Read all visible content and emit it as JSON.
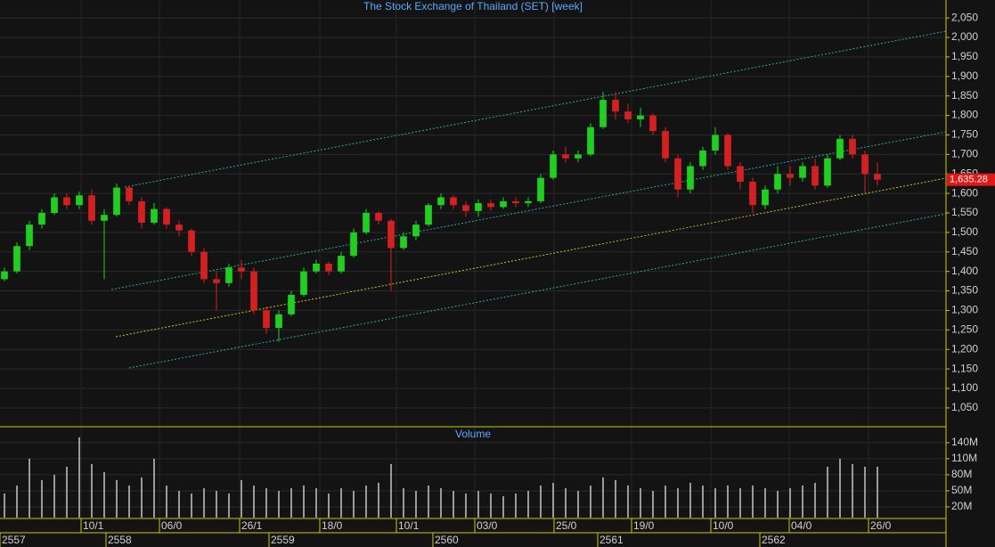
{
  "chart_data": {
    "type": "candlestick",
    "title": "The Stock Exchange of Thailand (SET) [week]",
    "volume_title": "Volume",
    "up_color": "#1fd01f",
    "down_color": "#d42020",
    "grid": true,
    "ylim": [
      1004,
      2096
    ],
    "yticks": [
      {
        "value": 1050,
        "label": "1,050"
      },
      {
        "value": 1100,
        "label": "1,100"
      },
      {
        "value": 1150,
        "label": "1,150"
      },
      {
        "value": 1200,
        "label": "1,200"
      },
      {
        "value": 1250,
        "label": "1,250"
      },
      {
        "value": 1300,
        "label": "1,300"
      },
      {
        "value": 1350,
        "label": "1,350"
      },
      {
        "value": 1400,
        "label": "1,400"
      },
      {
        "value": 1450,
        "label": "1,450"
      },
      {
        "value": 1500,
        "label": "1,500"
      },
      {
        "value": 1550,
        "label": "1,550"
      },
      {
        "value": 1600,
        "label": "1,600"
      },
      {
        "value": 1650,
        "label": "1,650"
      },
      {
        "value": 1700,
        "label": "1,700"
      },
      {
        "value": 1750,
        "label": "1,750"
      },
      {
        "value": 1800,
        "label": "1,800"
      },
      {
        "value": 1850,
        "label": "1,850"
      },
      {
        "value": 1900,
        "label": "1,900"
      },
      {
        "value": 1950,
        "label": "1,950"
      },
      {
        "value": 2000,
        "label": "2,000"
      },
      {
        "value": 2050,
        "label": "2,050"
      }
    ],
    "last_price": {
      "value": 1635.28,
      "label": "1,635.28"
    },
    "candles": [
      [
        1380,
        1410,
        1375,
        1400
      ],
      [
        1400,
        1475,
        1395,
        1465
      ],
      [
        1465,
        1530,
        1455,
        1520
      ],
      [
        1520,
        1560,
        1510,
        1550
      ],
      [
        1550,
        1600,
        1545,
        1590
      ],
      [
        1590,
        1600,
        1560,
        1570
      ],
      [
        1570,
        1605,
        1560,
        1595
      ],
      [
        1595,
        1610,
        1520,
        1530
      ],
      [
        1530,
        1560,
        1380,
        1545
      ],
      [
        1545,
        1625,
        1540,
        1615
      ],
      [
        1615,
        1620,
        1570,
        1580
      ],
      [
        1580,
        1590,
        1510,
        1525
      ],
      [
        1525,
        1575,
        1520,
        1560
      ],
      [
        1560,
        1565,
        1510,
        1520
      ],
      [
        1520,
        1530,
        1490,
        1505
      ],
      [
        1505,
        1510,
        1440,
        1450
      ],
      [
        1450,
        1460,
        1370,
        1380
      ],
      [
        1380,
        1400,
        1300,
        1370
      ],
      [
        1370,
        1420,
        1360,
        1410
      ],
      [
        1410,
        1430,
        1380,
        1400
      ],
      [
        1400,
        1410,
        1290,
        1300
      ],
      [
        1300,
        1310,
        1240,
        1255
      ],
      [
        1255,
        1300,
        1220,
        1290
      ],
      [
        1290,
        1350,
        1285,
        1340
      ],
      [
        1340,
        1410,
        1335,
        1400
      ],
      [
        1400,
        1430,
        1395,
        1420
      ],
      [
        1420,
        1425,
        1390,
        1400
      ],
      [
        1400,
        1450,
        1395,
        1440
      ],
      [
        1440,
        1510,
        1435,
        1500
      ],
      [
        1500,
        1560,
        1495,
        1550
      ],
      [
        1550,
        1555,
        1520,
        1530
      ],
      [
        1530,
        1535,
        1350,
        1460
      ],
      [
        1460,
        1500,
        1455,
        1490
      ],
      [
        1490,
        1530,
        1480,
        1520
      ],
      [
        1520,
        1575,
        1515,
        1570
      ],
      [
        1570,
        1600,
        1560,
        1590
      ],
      [
        1590,
        1595,
        1560,
        1570
      ],
      [
        1570,
        1580,
        1540,
        1555
      ],
      [
        1555,
        1585,
        1540,
        1575
      ],
      [
        1575,
        1585,
        1555,
        1565
      ],
      [
        1565,
        1590,
        1560,
        1580
      ],
      [
        1580,
        1590,
        1565,
        1575
      ],
      [
        1575,
        1590,
        1565,
        1580
      ],
      [
        1580,
        1650,
        1575,
        1640
      ],
      [
        1640,
        1710,
        1635,
        1700
      ],
      [
        1700,
        1720,
        1680,
        1690
      ],
      [
        1690,
        1710,
        1680,
        1700
      ],
      [
        1700,
        1780,
        1695,
        1770
      ],
      [
        1770,
        1860,
        1765,
        1840
      ],
      [
        1840,
        1860,
        1790,
        1810
      ],
      [
        1810,
        1830,
        1780,
        1790
      ],
      [
        1790,
        1820,
        1770,
        1800
      ],
      [
        1800,
        1805,
        1750,
        1760
      ],
      [
        1760,
        1770,
        1680,
        1690
      ],
      [
        1690,
        1700,
        1590,
        1610
      ],
      [
        1610,
        1680,
        1600,
        1670
      ],
      [
        1670,
        1720,
        1660,
        1710
      ],
      [
        1710,
        1770,
        1700,
        1750
      ],
      [
        1750,
        1755,
        1660,
        1670
      ],
      [
        1670,
        1680,
        1610,
        1630
      ],
      [
        1630,
        1640,
        1550,
        1570
      ],
      [
        1570,
        1620,
        1560,
        1610
      ],
      [
        1610,
        1670,
        1600,
        1650
      ],
      [
        1650,
        1670,
        1620,
        1640
      ],
      [
        1640,
        1680,
        1630,
        1670
      ],
      [
        1670,
        1690,
        1610,
        1620
      ],
      [
        1620,
        1700,
        1615,
        1690
      ],
      [
        1690,
        1750,
        1685,
        1740
      ],
      [
        1740,
        1750,
        1690,
        1700
      ],
      [
        1700,
        1710,
        1600,
        1650
      ],
      [
        1650,
        1680,
        1620,
        1635.28
      ]
    ],
    "volume": {
      "ylim": [
        0,
        168
      ],
      "yticks": [
        {
          "value": 20,
          "label": "20M"
        },
        {
          "value": 50,
          "label": "50M"
        },
        {
          "value": 80,
          "label": "80M"
        },
        {
          "value": 110,
          "label": "110M"
        },
        {
          "value": 140,
          "label": "140M"
        }
      ],
      "values": [
        45,
        60,
        110,
        70,
        80,
        95,
        150,
        100,
        85,
        70,
        60,
        75,
        110,
        60,
        50,
        45,
        55,
        50,
        45,
        70,
        60,
        55,
        50,
        55,
        60,
        55,
        45,
        55,
        50,
        60,
        65,
        100,
        55,
        50,
        60,
        55,
        50,
        45,
        50,
        45,
        40,
        45,
        50,
        60,
        65,
        55,
        50,
        60,
        75,
        70,
        60,
        55,
        50,
        60,
        55,
        65,
        60,
        55,
        60,
        55,
        60,
        55,
        50,
        55,
        60,
        65,
        95,
        110,
        100,
        95,
        95
      ]
    },
    "date_labels": [
      "10/1",
      "06/0",
      "26/1",
      "18/0",
      "10/1",
      "03/0",
      "25/0",
      "19/0",
      "10/0",
      "04/0",
      "26/0"
    ],
    "year_labels": [
      "2557",
      "2558",
      "2559",
      "2560",
      "2561",
      "2562"
    ]
  }
}
